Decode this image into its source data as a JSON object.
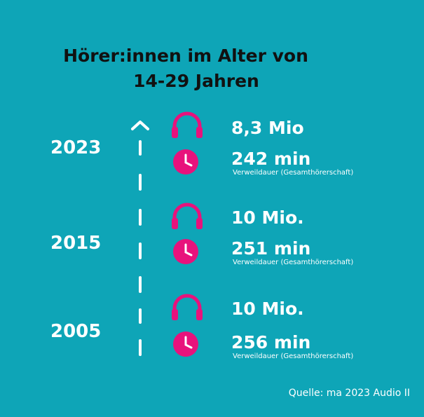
{
  "title_line1": "Hörer:innen im Alter von",
  "title_line2": "14-29 Jahren",
  "colors": {
    "background": "#0ea5b7",
    "accent": "#e8127c",
    "title": "#111111",
    "text": "#ffffff"
  },
  "icons": {
    "listeners": "headphones-icon",
    "duration": "clock-icon",
    "arrow": "arrow-up-icon"
  },
  "entries": [
    {
      "year": "2023",
      "listeners": "8,3 Mio",
      "duration": "242 min",
      "duration_note": "Verweildauer (Gesamthörerschaft)"
    },
    {
      "year": "2015",
      "listeners": "10 Mio.",
      "duration": "251 min",
      "duration_note": "Verweildauer (Gesamthörerschaft)"
    },
    {
      "year": "2005",
      "listeners": "10 Mio.",
      "duration": "256 min",
      "duration_note": "Verweildauer (Gesamthörerschaft)"
    }
  ],
  "source": "Quelle: ma 2023 Audio II"
}
